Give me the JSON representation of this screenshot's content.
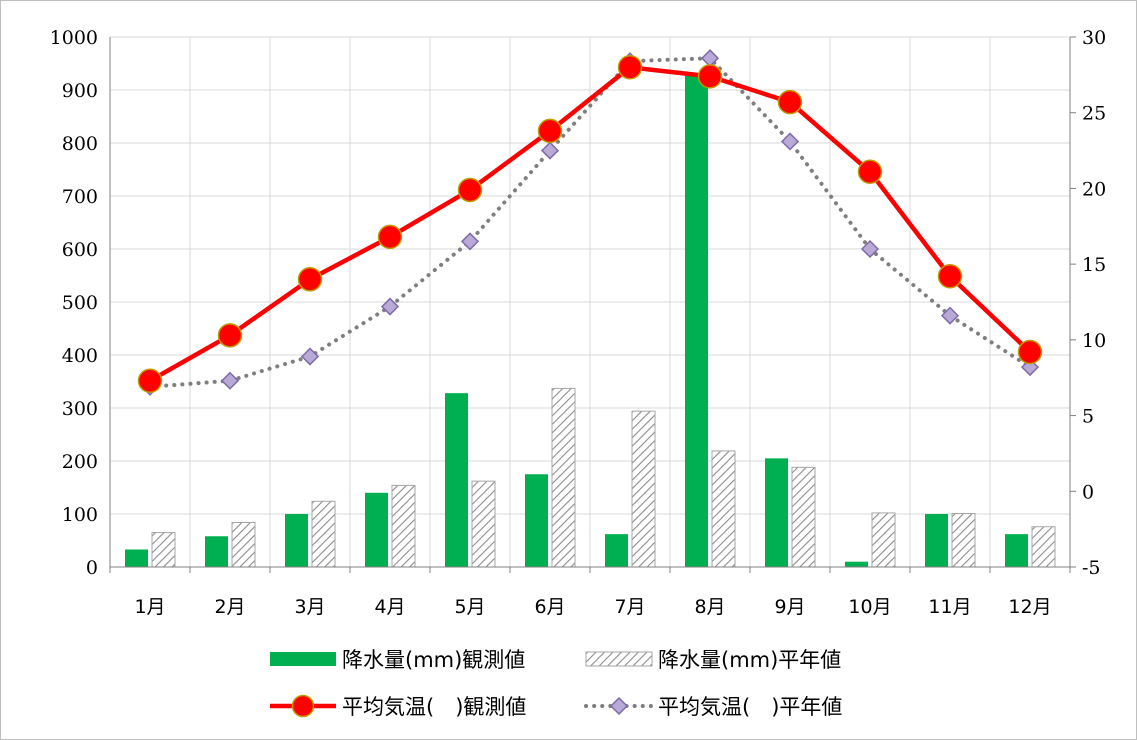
{
  "chart_data": {
    "type": "bar",
    "categories": [
      "1月",
      "2月",
      "3月",
      "4月",
      "5月",
      "6月",
      "7月",
      "8月",
      "9月",
      "10月",
      "11月",
      "12月"
    ],
    "y_left": {
      "range": [
        0,
        1000
      ],
      "ticks": [
        "0",
        "100",
        "200",
        "300",
        "400",
        "500",
        "600",
        "700",
        "800",
        "900",
        "1000"
      ]
    },
    "y_right": {
      "range": [
        -5,
        30
      ],
      "ticks": [
        "-5",
        "0",
        "5",
        "10",
        "15",
        "20",
        "25",
        "30"
      ]
    },
    "grid": true,
    "legend_position": "bottom",
    "series": [
      {
        "name": "降水量(mm)観測値",
        "type": "bar",
        "axis": "left",
        "color": "#00b050",
        "values": [
          33,
          58,
          100,
          140,
          328,
          175,
          62,
          928,
          205,
          10,
          100,
          62
        ]
      },
      {
        "name": "降水量(mm)平年値",
        "type": "bar",
        "axis": "left",
        "color": "#a6a6a6",
        "pattern": "hatch",
        "values": [
          65,
          84,
          124,
          154,
          162,
          337,
          294,
          219,
          188,
          102,
          101,
          76
        ]
      },
      {
        "name": "平均気温(　)観測値",
        "type": "line",
        "axis": "right",
        "color": "#ff0000",
        "values": [
          7.3,
          10.3,
          14.0,
          16.8,
          19.9,
          23.8,
          28.0,
          27.4,
          25.7,
          21.1,
          14.2,
          9.2
        ]
      },
      {
        "name": "平均気温(　)平年値",
        "type": "line",
        "axis": "right",
        "color": "#7f7f7f",
        "dash": "dotted",
        "values": [
          6.9,
          7.3,
          8.9,
          12.2,
          16.5,
          22.5,
          28.4,
          28.6,
          23.1,
          16.0,
          11.6,
          8.2
        ]
      }
    ]
  }
}
